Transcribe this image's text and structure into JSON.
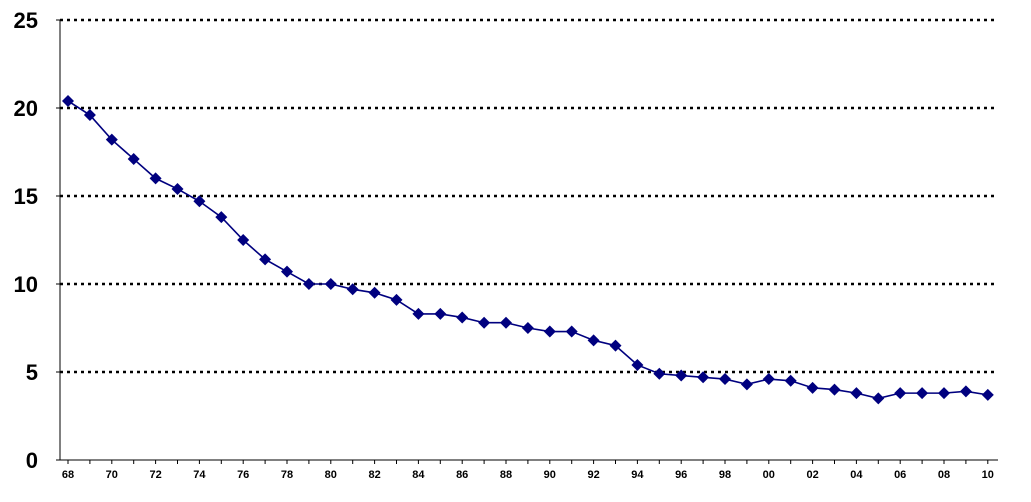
{
  "chart_data": {
    "type": "line",
    "title": "",
    "xlabel": "",
    "ylabel": "",
    "ylim": [
      0,
      25
    ],
    "y_ticks": [
      0,
      5,
      10,
      15,
      20,
      25
    ],
    "y_tick_labels": [
      "0",
      "5",
      "10",
      "15",
      "20",
      "25"
    ],
    "x_tick_labels": [
      "68",
      "70",
      "72",
      "74",
      "76",
      "78",
      "80",
      "82",
      "84",
      "86",
      "88",
      "90",
      "92",
      "94",
      "96",
      "98",
      "00",
      "02",
      "04",
      "06",
      "08",
      "10"
    ],
    "grid": "horizontal dotted",
    "legend": "none",
    "x": [
      "1968",
      "1969",
      "1970",
      "1971",
      "1972",
      "1973",
      "1974",
      "1975",
      "1976",
      "1977",
      "1978",
      "1979",
      "1980",
      "1981",
      "1982",
      "1983",
      "1984",
      "1985",
      "1986",
      "1987",
      "1988",
      "1989",
      "1990",
      "1991",
      "1992",
      "1993",
      "1994",
      "1995",
      "1996",
      "1997",
      "1998",
      "1999",
      "2000",
      "2001",
      "2002",
      "2003",
      "2004",
      "2005",
      "2006",
      "2007",
      "2008",
      "2009",
      "2010"
    ],
    "series": [
      {
        "values": [
          20.4,
          19.6,
          18.2,
          17.1,
          16.0,
          15.4,
          14.7,
          13.8,
          12.5,
          11.4,
          10.7,
          10.0,
          10.0,
          9.7,
          9.5,
          9.1,
          8.3,
          8.3,
          8.1,
          7.8,
          7.8,
          7.5,
          7.3,
          7.3,
          6.8,
          6.5,
          5.4,
          4.9,
          4.8,
          4.7,
          4.6,
          4.3,
          4.6,
          4.5,
          4.1,
          4.0,
          3.8,
          3.5,
          3.8,
          3.8,
          3.8,
          3.9,
          3.7
        ],
        "color": "#00007F"
      }
    ],
    "colors": {
      "line": "#00007F",
      "marker": "#00007F",
      "grid": "#000000",
      "axis": "#000000"
    }
  }
}
